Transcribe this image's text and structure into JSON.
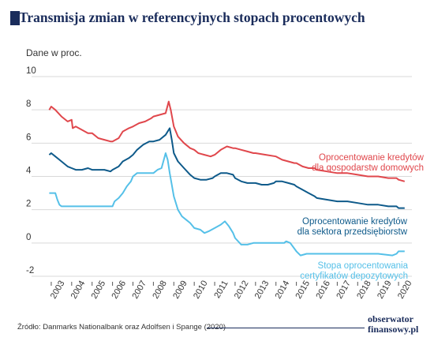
{
  "header": {
    "title": "Transmisja zmian w referencyjnych stopach procentowych"
  },
  "footer": {
    "source": "Źródło: Danmarks Nationalbank oraz Adolfsen i Spange (2020)",
    "brand_line1": "obserwator",
    "brand_line2": "finansowy.pl"
  },
  "colors": {
    "title": "#1a2c5b",
    "red": "#e0474c",
    "blue": "#0e5a8a",
    "light_blue": "#55c0e8"
  },
  "chart_data": {
    "type": "line",
    "ylabel": "Dane w proc.",
    "ylim": [
      -2,
      10
    ],
    "y_ticks": [
      "-2",
      "0",
      "2",
      "4",
      "6",
      "8",
      "10"
    ],
    "x_ticks": [
      "2003",
      "2004",
      "2005",
      "2006",
      "2007",
      "2008",
      "2009",
      "2010",
      "2011",
      "2012",
      "2013",
      "2014",
      "2015",
      "2016",
      "2017",
      "2018",
      "2019",
      "2020"
    ],
    "grid": true,
    "series": [
      {
        "name_line1": "Oprocentowanie kredytów",
        "name_line2": "dla gospodarstw domowych",
        "color": "#e0474c",
        "points": [
          [
            2002.9,
            8.0
          ],
          [
            2003.0,
            8.2
          ],
          [
            2003.2,
            8.0
          ],
          [
            2003.5,
            7.6
          ],
          [
            2003.8,
            7.3
          ],
          [
            2004.0,
            7.4
          ],
          [
            2004.05,
            6.9
          ],
          [
            2004.2,
            7.0
          ],
          [
            2004.5,
            6.8
          ],
          [
            2004.8,
            6.6
          ],
          [
            2005.0,
            6.6
          ],
          [
            2005.3,
            6.3
          ],
          [
            2005.6,
            6.2
          ],
          [
            2005.9,
            6.1
          ],
          [
            2006.0,
            6.1
          ],
          [
            2006.3,
            6.3
          ],
          [
            2006.5,
            6.7
          ],
          [
            2006.8,
            6.9
          ],
          [
            2007.0,
            7.0
          ],
          [
            2007.3,
            7.2
          ],
          [
            2007.6,
            7.3
          ],
          [
            2007.9,
            7.5
          ],
          [
            2008.0,
            7.6
          ],
          [
            2008.3,
            7.7
          ],
          [
            2008.6,
            7.8
          ],
          [
            2008.75,
            8.5
          ],
          [
            2008.85,
            8.0
          ],
          [
            2009.0,
            7.0
          ],
          [
            2009.2,
            6.4
          ],
          [
            2009.5,
            6.0
          ],
          [
            2009.8,
            5.7
          ],
          [
            2010.0,
            5.6
          ],
          [
            2010.2,
            5.4
          ],
          [
            2010.5,
            5.3
          ],
          [
            2010.8,
            5.2
          ],
          [
            2011.0,
            5.3
          ],
          [
            2011.3,
            5.6
          ],
          [
            2011.6,
            5.8
          ],
          [
            2011.9,
            5.7
          ],
          [
            2012.0,
            5.7
          ],
          [
            2012.3,
            5.6
          ],
          [
            2012.6,
            5.5
          ],
          [
            2012.9,
            5.4
          ],
          [
            2013.0,
            5.4
          ],
          [
            2013.5,
            5.3
          ],
          [
            2014.0,
            5.2
          ],
          [
            2014.3,
            5.0
          ],
          [
            2014.6,
            4.9
          ],
          [
            2014.9,
            4.8
          ],
          [
            2015.0,
            4.8
          ],
          [
            2015.3,
            4.6
          ],
          [
            2015.6,
            4.5
          ],
          [
            2015.9,
            4.5
          ],
          [
            2016.0,
            4.4
          ],
          [
            2016.5,
            4.3
          ],
          [
            2017.0,
            4.2
          ],
          [
            2017.5,
            4.2
          ],
          [
            2018.0,
            4.1
          ],
          [
            2018.5,
            4.0
          ],
          [
            2019.0,
            4.0
          ],
          [
            2019.5,
            3.9
          ],
          [
            2019.9,
            3.9
          ],
          [
            2020.0,
            3.8
          ],
          [
            2020.3,
            3.7
          ]
        ]
      },
      {
        "name_line1": "Oprocentowanie kredytów",
        "name_line2": "dla sektora przedsiębiorstw",
        "color": "#0e5a8a",
        "points": [
          [
            2002.9,
            5.3
          ],
          [
            2003.0,
            5.4
          ],
          [
            2003.2,
            5.2
          ],
          [
            2003.4,
            5.0
          ],
          [
            2003.6,
            4.8
          ],
          [
            2003.8,
            4.6
          ],
          [
            2004.0,
            4.5
          ],
          [
            2004.2,
            4.4
          ],
          [
            2004.5,
            4.4
          ],
          [
            2004.8,
            4.5
          ],
          [
            2005.0,
            4.4
          ],
          [
            2005.3,
            4.4
          ],
          [
            2005.6,
            4.4
          ],
          [
            2005.9,
            4.3
          ],
          [
            2006.0,
            4.4
          ],
          [
            2006.3,
            4.6
          ],
          [
            2006.5,
            4.9
          ],
          [
            2006.8,
            5.1
          ],
          [
            2007.0,
            5.3
          ],
          [
            2007.2,
            5.6
          ],
          [
            2007.5,
            5.9
          ],
          [
            2007.8,
            6.1
          ],
          [
            2008.0,
            6.1
          ],
          [
            2008.3,
            6.2
          ],
          [
            2008.6,
            6.5
          ],
          [
            2008.8,
            6.9
          ],
          [
            2008.9,
            6.2
          ],
          [
            2009.0,
            5.4
          ],
          [
            2009.2,
            4.9
          ],
          [
            2009.5,
            4.5
          ],
          [
            2009.8,
            4.1
          ],
          [
            2010.0,
            3.9
          ],
          [
            2010.3,
            3.8
          ],
          [
            2010.6,
            3.8
          ],
          [
            2010.9,
            3.9
          ],
          [
            2011.0,
            4.0
          ],
          [
            2011.3,
            4.2
          ],
          [
            2011.6,
            4.2
          ],
          [
            2011.9,
            4.1
          ],
          [
            2012.0,
            3.9
          ],
          [
            2012.3,
            3.7
          ],
          [
            2012.6,
            3.6
          ],
          [
            2012.9,
            3.6
          ],
          [
            2013.0,
            3.6
          ],
          [
            2013.3,
            3.5
          ],
          [
            2013.6,
            3.5
          ],
          [
            2013.9,
            3.6
          ],
          [
            2014.0,
            3.7
          ],
          [
            2014.3,
            3.7
          ],
          [
            2014.6,
            3.6
          ],
          [
            2014.9,
            3.5
          ],
          [
            2015.0,
            3.4
          ],
          [
            2015.3,
            3.2
          ],
          [
            2015.6,
            3.0
          ],
          [
            2015.9,
            2.8
          ],
          [
            2016.0,
            2.7
          ],
          [
            2016.5,
            2.6
          ],
          [
            2017.0,
            2.5
          ],
          [
            2017.5,
            2.5
          ],
          [
            2018.0,
            2.4
          ],
          [
            2018.5,
            2.3
          ],
          [
            2019.0,
            2.3
          ],
          [
            2019.5,
            2.2
          ],
          [
            2019.9,
            2.2
          ],
          [
            2020.0,
            2.1
          ],
          [
            2020.3,
            2.1
          ]
        ]
      },
      {
        "name_line1": "Stopa oprocentowania",
        "name_line2": "certyfikatów depozytowych",
        "color": "#55c0e8",
        "points": [
          [
            2002.9,
            3.0
          ],
          [
            2003.2,
            3.0
          ],
          [
            2003.3,
            2.6
          ],
          [
            2003.4,
            2.3
          ],
          [
            2003.5,
            2.2
          ],
          [
            2005.0,
            2.2
          ],
          [
            2006.0,
            2.2
          ],
          [
            2006.1,
            2.5
          ],
          [
            2006.3,
            2.7
          ],
          [
            2006.5,
            3.0
          ],
          [
            2006.7,
            3.4
          ],
          [
            2006.9,
            3.7
          ],
          [
            2007.0,
            4.0
          ],
          [
            2007.2,
            4.2
          ],
          [
            2007.5,
            4.2
          ],
          [
            2008.0,
            4.2
          ],
          [
            2008.2,
            4.4
          ],
          [
            2008.4,
            4.5
          ],
          [
            2008.6,
            5.4
          ],
          [
            2008.7,
            5.0
          ],
          [
            2008.8,
            4.2
          ],
          [
            2008.9,
            3.5
          ],
          [
            2009.0,
            2.8
          ],
          [
            2009.2,
            2.0
          ],
          [
            2009.4,
            1.6
          ],
          [
            2009.6,
            1.4
          ],
          [
            2009.8,
            1.2
          ],
          [
            2010.0,
            0.9
          ],
          [
            2010.3,
            0.8
          ],
          [
            2010.5,
            0.6
          ],
          [
            2010.7,
            0.7
          ],
          [
            2011.0,
            0.9
          ],
          [
            2011.3,
            1.1
          ],
          [
            2011.5,
            1.3
          ],
          [
            2011.7,
            1.0
          ],
          [
            2011.9,
            0.6
          ],
          [
            2012.0,
            0.3
          ],
          [
            2012.3,
            -0.1
          ],
          [
            2012.6,
            -0.1
          ],
          [
            2012.9,
            0.0
          ],
          [
            2013.0,
            0.0
          ],
          [
            2013.5,
            0.0
          ],
          [
            2014.0,
            0.0
          ],
          [
            2014.4,
            0.0
          ],
          [
            2014.5,
            0.1
          ],
          [
            2014.7,
            0.0
          ],
          [
            2015.0,
            -0.5
          ],
          [
            2015.2,
            -0.75
          ],
          [
            2015.5,
            -0.65
          ],
          [
            2016.0,
            -0.65
          ],
          [
            2016.5,
            -0.65
          ],
          [
            2017.0,
            -0.65
          ],
          [
            2018.0,
            -0.65
          ],
          [
            2019.0,
            -0.65
          ],
          [
            2019.7,
            -0.75
          ],
          [
            2019.9,
            -0.65
          ],
          [
            2020.0,
            -0.5
          ],
          [
            2020.3,
            -0.5
          ]
        ]
      }
    ]
  }
}
